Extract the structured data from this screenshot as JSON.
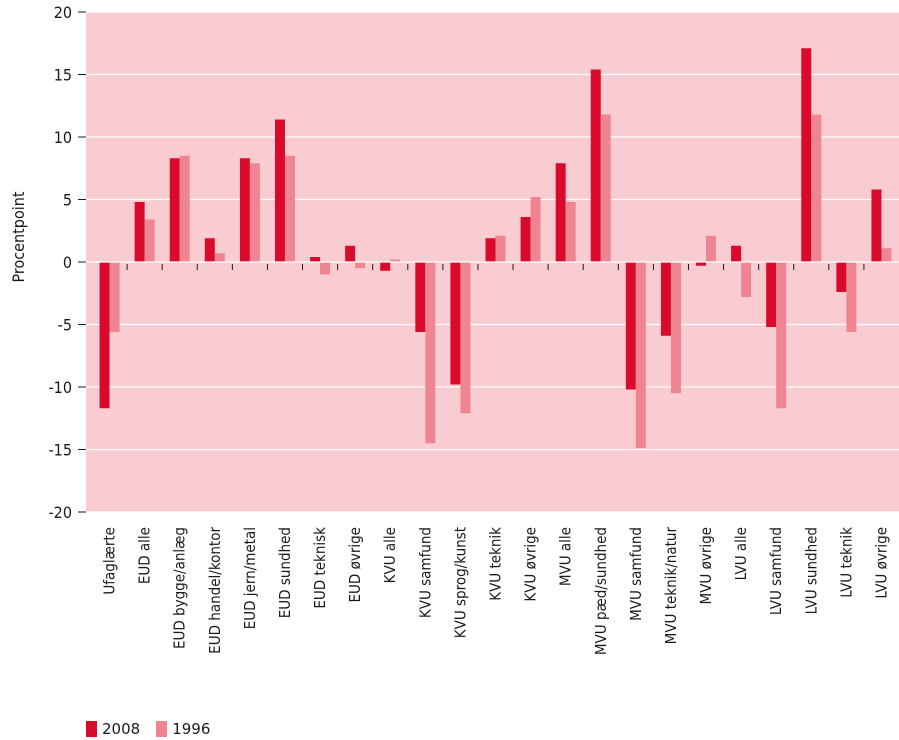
{
  "chart_data": {
    "type": "bar",
    "title": "",
    "xlabel": "",
    "ylabel": "Procentpoint",
    "ylim": [
      -20,
      20
    ],
    "yticks": [
      20,
      15,
      10,
      5,
      0,
      -5,
      -10,
      -15,
      -20
    ],
    "ytick_labels": [
      "20",
      "15",
      "10",
      "5",
      "0",
      "-5",
      "-10",
      "-15",
      "-20"
    ],
    "grid": true,
    "legend_position": "bottom-left",
    "plot_background": "#f9ccd2",
    "categories": [
      "Ufaglærte",
      "EUD alle",
      "EUD bygge/anlæg",
      "EUD handel/kontor",
      "EUD jern/metal",
      "EUD sundhed",
      "EUD teknisk",
      "EUD øvrige",
      "KVU alle",
      "KVU samfund",
      "KVU sprog/kunst",
      "KVU teknik",
      "KVU øvrige",
      "MVU alle",
      "MVU pæd/sundhed",
      "MVU samfund",
      "MVU teknik/natur",
      "MVU øvrige",
      "LVU alle",
      "LVU samfund",
      "LVU sundhed",
      "LVU teknik",
      "LVU øvrige"
    ],
    "series": [
      {
        "name": "2008",
        "color": "#d90a2c",
        "values": [
          -11.7,
          4.8,
          8.3,
          1.9,
          8.3,
          11.4,
          0.4,
          1.3,
          -0.7,
          -5.6,
          -9.8,
          1.9,
          3.6,
          7.9,
          15.4,
          -10.2,
          -5.9,
          -0.3,
          1.3,
          -5.2,
          17.1,
          -2.4,
          5.8
        ]
      },
      {
        "name": "1996",
        "color": "#ee8590",
        "values": [
          -5.6,
          3.4,
          8.5,
          0.7,
          7.9,
          8.5,
          -1.0,
          -0.5,
          0.2,
          -14.5,
          -12.1,
          2.1,
          5.2,
          4.8,
          11.8,
          -14.9,
          -10.5,
          2.1,
          -2.8,
          -11.7,
          11.8,
          -5.6,
          1.1
        ]
      }
    ]
  }
}
